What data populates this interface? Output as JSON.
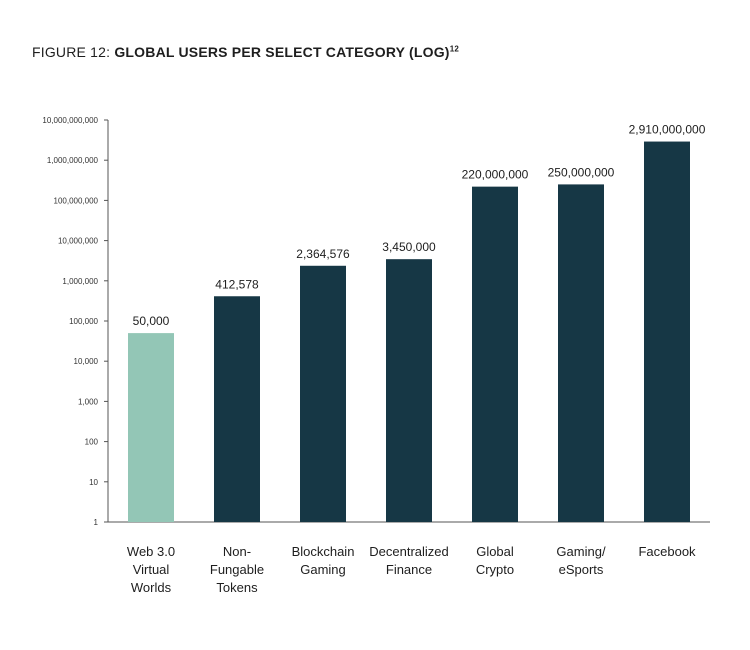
{
  "figure": {
    "prefix": "FIGURE 12: ",
    "title": "GLOBAL USERS PER SELECT CATEGORY (LOG)",
    "footnote": "12"
  },
  "chart_data": {
    "type": "bar",
    "scale": "log",
    "ylim": [
      1,
      10000000000
    ],
    "grid": false,
    "legend": "none",
    "ytick_values": [
      1,
      10,
      100,
      1000,
      10000,
      100000,
      1000000,
      10000000,
      100000000,
      1000000000,
      10000000000
    ],
    "ytick_labels": [
      "1",
      "10",
      "100",
      "1,000",
      "10,000",
      "100,000",
      "1,000,000",
      "10,000,000",
      "100,000,000",
      "1,000,000,000",
      "10,000,000,000"
    ],
    "categories": [
      [
        "Web 3.0",
        "Virtual",
        "Worlds"
      ],
      [
        "Non-",
        "Fungable",
        "Tokens"
      ],
      [
        "Blockchain",
        "Gaming"
      ],
      [
        "Decentralized",
        "Finance"
      ],
      [
        "Global",
        "Crypto"
      ],
      [
        "Gaming/",
        "eSports"
      ],
      [
        "Facebook"
      ]
    ],
    "values": [
      50000,
      412578,
      2364576,
      3450000,
      220000000,
      250000000,
      2910000000
    ],
    "value_labels": [
      "50,000",
      "412,578",
      "2,364,576",
      "3,450,000",
      "220,000,000",
      "250,000,000",
      "2,910,000,000"
    ],
    "colors": [
      "#93c6b6",
      "#163745",
      "#163745",
      "#163745",
      "#163745",
      "#163745",
      "#163745"
    ],
    "axis_color": "#555555"
  }
}
